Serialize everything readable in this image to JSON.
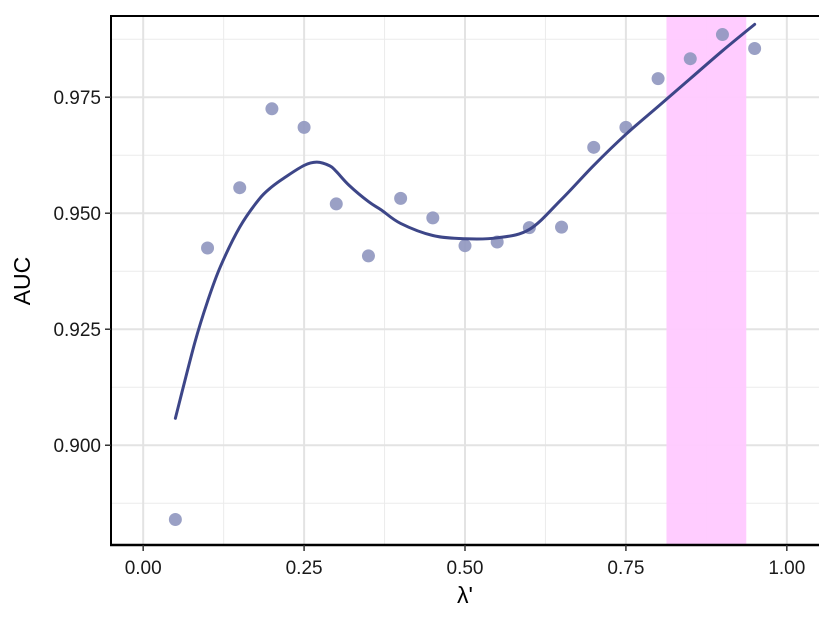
{
  "chart_data": {
    "type": "scatter",
    "xlabel": "λ'",
    "ylabel": "AUC",
    "xlim": [
      -0.05,
      1.05
    ],
    "ylim": [
      0.8785,
      0.9925
    ],
    "x_ticks": [
      0.0,
      0.25,
      0.5,
      0.75,
      1.0
    ],
    "x_tick_labels": [
      "0.00",
      "0.25",
      "0.50",
      "0.75",
      "1.00"
    ],
    "y_ticks": [
      0.9,
      0.925,
      0.95,
      0.975
    ],
    "y_tick_labels": [
      "0.900",
      "0.925",
      "0.950",
      "0.975"
    ],
    "grid": true,
    "points": {
      "color": "#8f96bf",
      "x": [
        0.05,
        0.1,
        0.15,
        0.2,
        0.25,
        0.3,
        0.35,
        0.4,
        0.45,
        0.5,
        0.55,
        0.6,
        0.65,
        0.7,
        0.75,
        0.8,
        0.85,
        0.9,
        0.95
      ],
      "y": [
        0.884,
        0.9425,
        0.9555,
        0.9725,
        0.9685,
        0.952,
        0.9408,
        0.9532,
        0.949,
        0.943,
        0.9438,
        0.9469,
        0.947,
        0.9642,
        0.9685,
        0.979,
        0.9833,
        0.9885,
        0.9855
      ]
    },
    "smooth_line": {
      "color": "#3d4688",
      "x": [
        0.05,
        0.08,
        0.1,
        0.12,
        0.15,
        0.18,
        0.2,
        0.22,
        0.25,
        0.27,
        0.29,
        0.3,
        0.32,
        0.35,
        0.37,
        0.4,
        0.45,
        0.5,
        0.55,
        0.6,
        0.65,
        0.7,
        0.75,
        0.8,
        0.85,
        0.9,
        0.95
      ],
      "y": [
        0.9058,
        0.922,
        0.931,
        0.9385,
        0.947,
        0.953,
        0.9557,
        0.9577,
        0.9603,
        0.961,
        0.9602,
        0.959,
        0.956,
        0.9525,
        0.9507,
        0.9478,
        0.9452,
        0.9445,
        0.9447,
        0.9465,
        0.953,
        0.9603,
        0.967,
        0.973,
        0.979,
        0.985,
        0.9907
      ]
    },
    "highlight_band": {
      "x_start": 0.813,
      "x_end": 0.937,
      "color": "#ffc9ff"
    }
  }
}
